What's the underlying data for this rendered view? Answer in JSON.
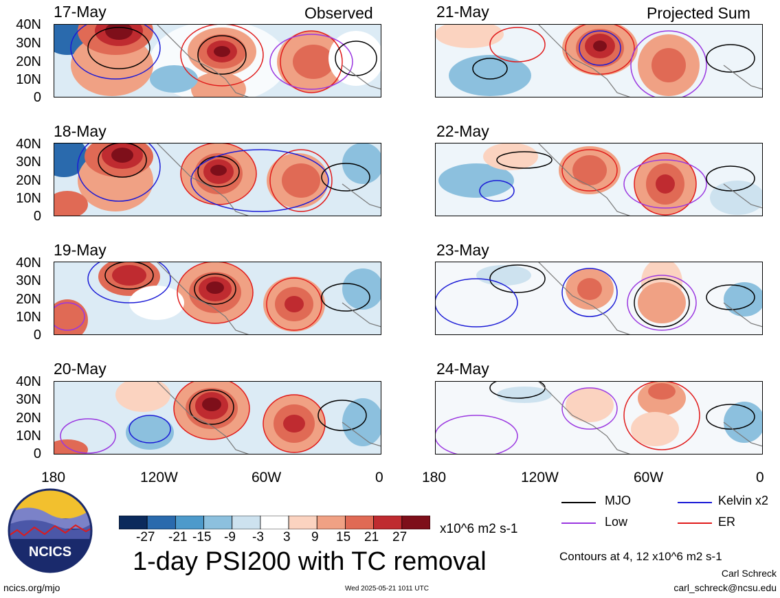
{
  "panels": {
    "left": [
      {
        "date": "17-May"
      },
      {
        "date": "18-May"
      },
      {
        "date": "19-May"
      },
      {
        "date": "20-May"
      }
    ],
    "right": [
      {
        "date": "21-May"
      },
      {
        "date": "22-May"
      },
      {
        "date": "23-May"
      },
      {
        "date": "24-May"
      }
    ],
    "left_label": "Observed",
    "right_label": "Projected Sum"
  },
  "lat_ticks": [
    "40N",
    "30N",
    "20N",
    "10N",
    "0"
  ],
  "lon_ticks": [
    "180",
    "120W",
    "60W",
    "0"
  ],
  "colorbar": {
    "colors": [
      "#0b2a5c",
      "#2a6aad",
      "#4d9acb",
      "#8cc0de",
      "#cde2ef",
      "#ffffff",
      "#fbd3c0",
      "#f0a184",
      "#e06a55",
      "#bf2b30",
      "#7e0f1a"
    ],
    "labels": [
      "-27",
      "-21",
      "-15",
      "-9",
      "-3",
      "3",
      "9",
      "15",
      "21",
      "27"
    ],
    "units": "x10^6 m2 s-1"
  },
  "legend": {
    "items": [
      {
        "label": "MJO",
        "color": "#000000"
      },
      {
        "label": "Kelvin x2",
        "color": "#1a1ad6"
      },
      {
        "label": "Low",
        "color": "#9a36e0"
      },
      {
        "label": "ER",
        "color": "#e01a1a"
      }
    ],
    "contours_note": "Contours at 4, 12 x10^6 m2 s-1"
  },
  "main_title": "1-day PSI200 with TC removal",
  "logo_text": "NCICS",
  "footer": {
    "url": "ncics.org/mjo",
    "timestamp": "Wed 2025-05-21 1011 UTC",
    "author": "Carl Schreck",
    "email": "carl_schreck@ncsu.edu"
  }
}
